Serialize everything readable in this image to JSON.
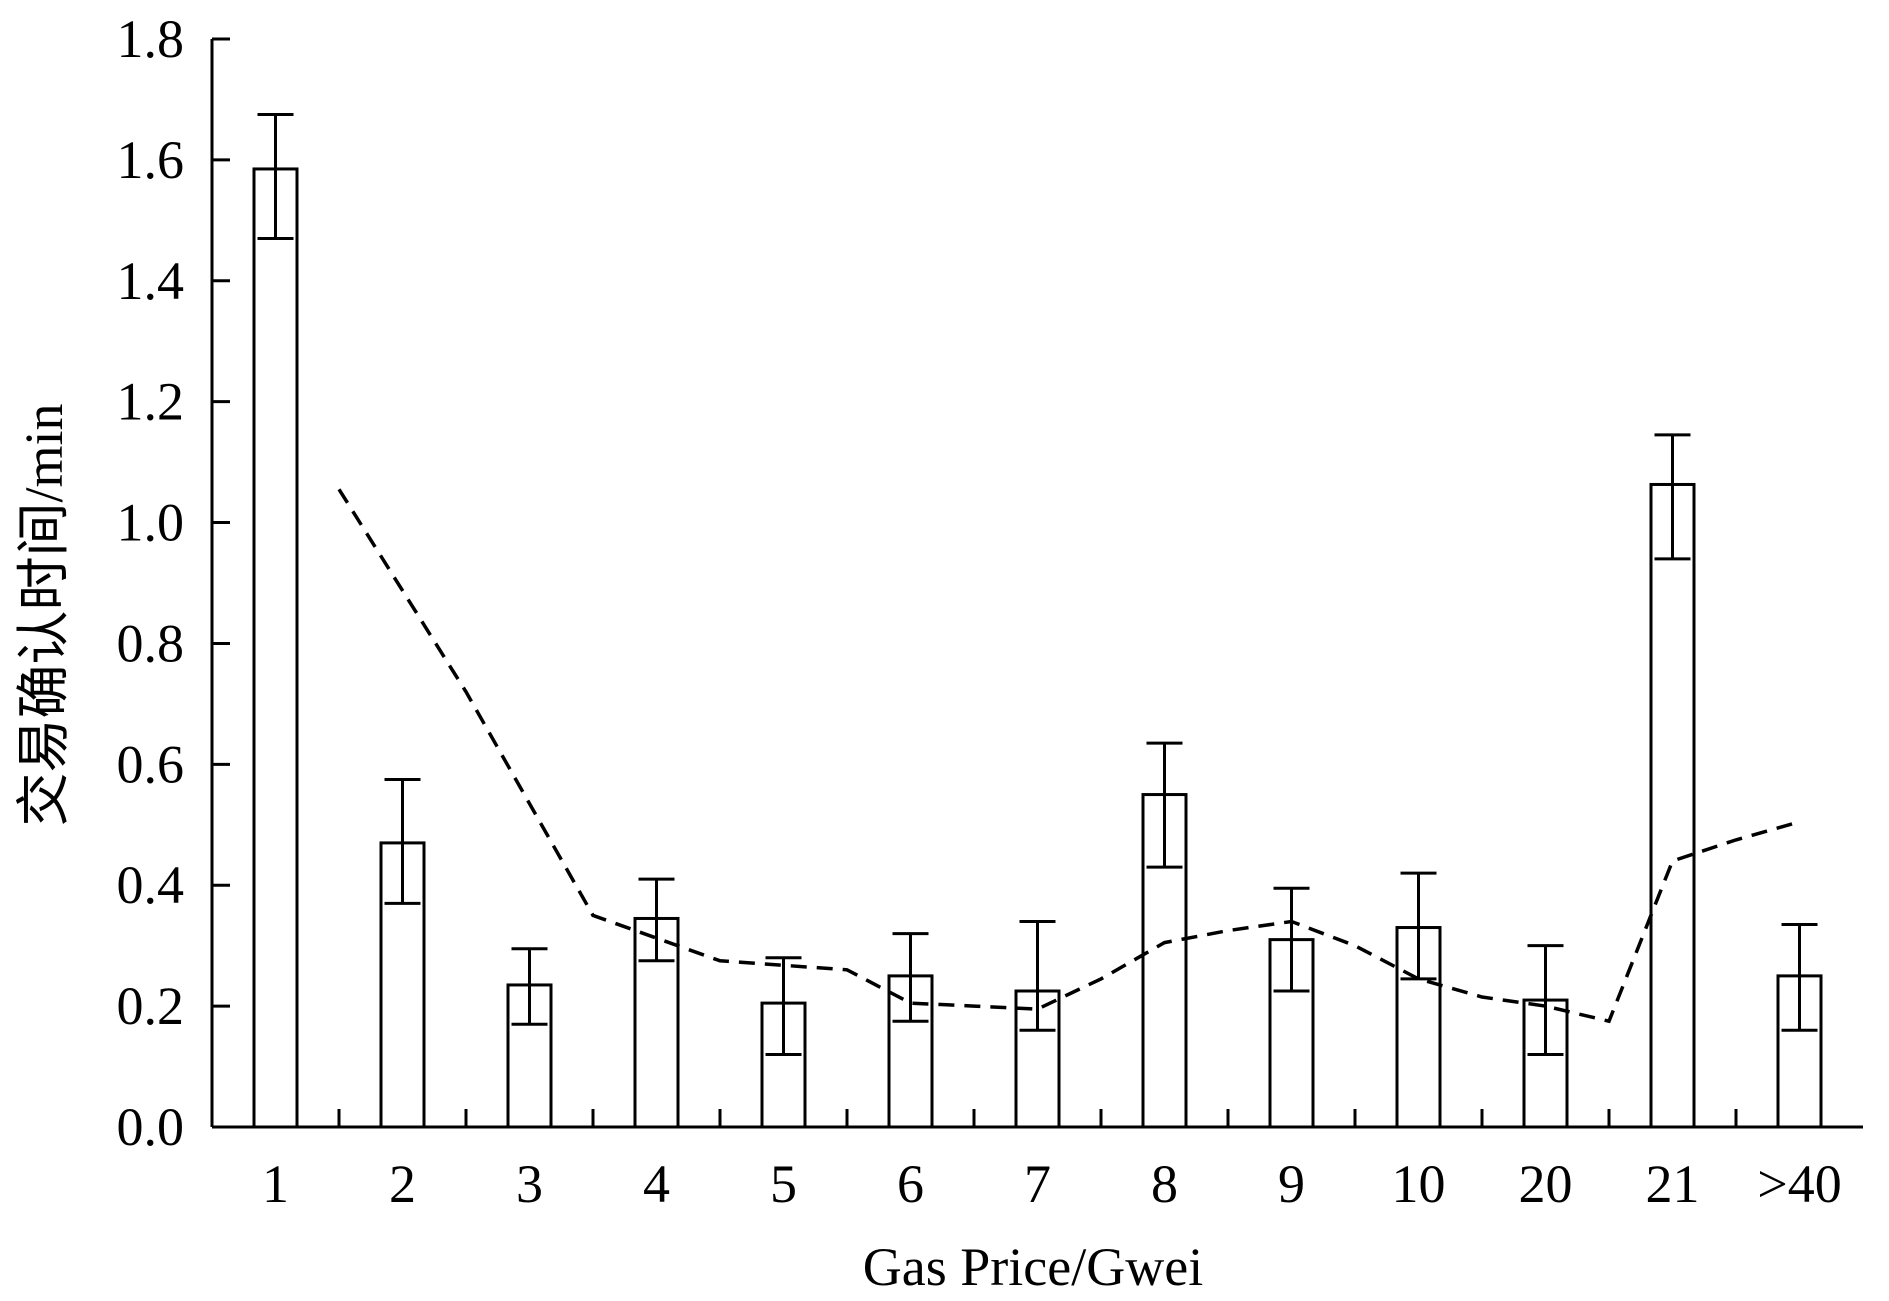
{
  "chart_data": {
    "type": "bar",
    "title": "",
    "xlabel": "Gas Price/Gwei",
    "ylabel": "交易确认时间/min",
    "categories": [
      "1",
      "2",
      "3",
      "4",
      "5",
      "6",
      "7",
      "8",
      "9",
      "10",
      "20",
      "21",
      ">40"
    ],
    "ylim": [
      0,
      1.8
    ],
    "yticks": [
      "0.0",
      "0.2",
      "0.4",
      "0.6",
      "0.8",
      "1.0",
      "1.2",
      "1.4",
      "1.6",
      "1.8"
    ],
    "grid": false,
    "legend": "none",
    "series": [
      {
        "type": "bar",
        "values": [
          1.585,
          0.47,
          0.235,
          0.345,
          0.205,
          0.25,
          0.225,
          0.55,
          0.31,
          0.33,
          0.21,
          1.063,
          0.25
        ],
        "error_low": [
          1.47,
          0.37,
          0.17,
          0.275,
          0.12,
          0.175,
          0.16,
          0.43,
          0.225,
          0.245,
          0.12,
          0.94,
          0.16
        ],
        "error_high": [
          1.675,
          0.575,
          0.295,
          0.41,
          0.28,
          0.32,
          0.34,
          0.635,
          0.395,
          0.42,
          0.3,
          1.145,
          0.335
        ],
        "fill": "#ffffff",
        "stroke": "#000000"
      },
      {
        "type": "line",
        "style": "dashed",
        "stroke": "#000000",
        "x": [
          1.5,
          2.5,
          3.5,
          4.5,
          5.5,
          6.0,
          6.5,
          7.0,
          7.5,
          8.0,
          8.5,
          9.0,
          9.5,
          10.0,
          10.5,
          11.0,
          11.5,
          12.0,
          12.5,
          13.0
        ],
        "values": [
          1.055,
          0.72,
          0.35,
          0.275,
          0.26,
          0.205,
          0.2,
          0.195,
          0.245,
          0.305,
          0.325,
          0.34,
          0.3,
          0.245,
          0.215,
          0.2,
          0.175,
          0.44,
          0.475,
          0.505
        ]
      }
    ]
  }
}
